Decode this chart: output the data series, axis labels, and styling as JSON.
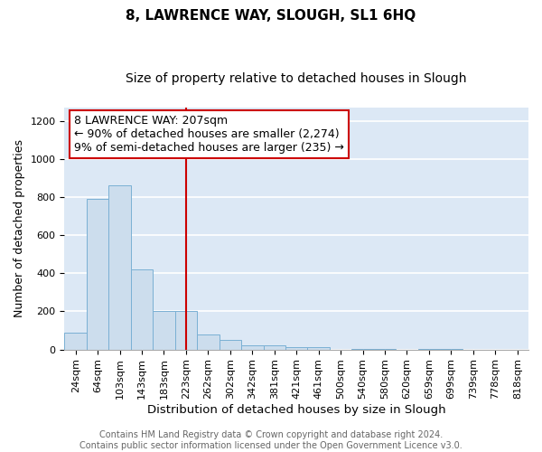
{
  "title1": "8, LAWRENCE WAY, SLOUGH, SL1 6HQ",
  "title2": "Size of property relative to detached houses in Slough",
  "xlabel": "Distribution of detached houses by size in Slough",
  "ylabel": "Number of detached properties",
  "categories": [
    "24sqm",
    "64sqm",
    "103sqm",
    "143sqm",
    "183sqm",
    "223sqm",
    "262sqm",
    "302sqm",
    "342sqm",
    "381sqm",
    "421sqm",
    "461sqm",
    "500sqm",
    "540sqm",
    "580sqm",
    "620sqm",
    "659sqm",
    "699sqm",
    "739sqm",
    "778sqm",
    "818sqm"
  ],
  "values": [
    90,
    790,
    860,
    420,
    200,
    200,
    80,
    50,
    20,
    20,
    10,
    10,
    0,
    5,
    5,
    0,
    5,
    5,
    0,
    0,
    0
  ],
  "bar_color": "#ccdded",
  "bar_edge_color": "#7ab0d4",
  "red_line_x": 5.0,
  "annotation_line1": "8 LAWRENCE WAY: 207sqm",
  "annotation_line2": "← 90% of detached houses are smaller (2,274)",
  "annotation_line3": "9% of semi-detached houses are larger (235) →",
  "annotation_box_color": "#ffffff",
  "annotation_box_edge": "#cc0000",
  "red_line_color": "#cc0000",
  "ylim": [
    0,
    1270
  ],
  "background_color": "#dce8f5",
  "grid_color": "#ffffff",
  "footer": "Contains HM Land Registry data © Crown copyright and database right 2024.\nContains public sector information licensed under the Open Government Licence v3.0.",
  "title1_fontsize": 11,
  "title2_fontsize": 10,
  "xlabel_fontsize": 9.5,
  "ylabel_fontsize": 9,
  "tick_fontsize": 8,
  "annotation_fontsize": 9,
  "footer_fontsize": 7
}
